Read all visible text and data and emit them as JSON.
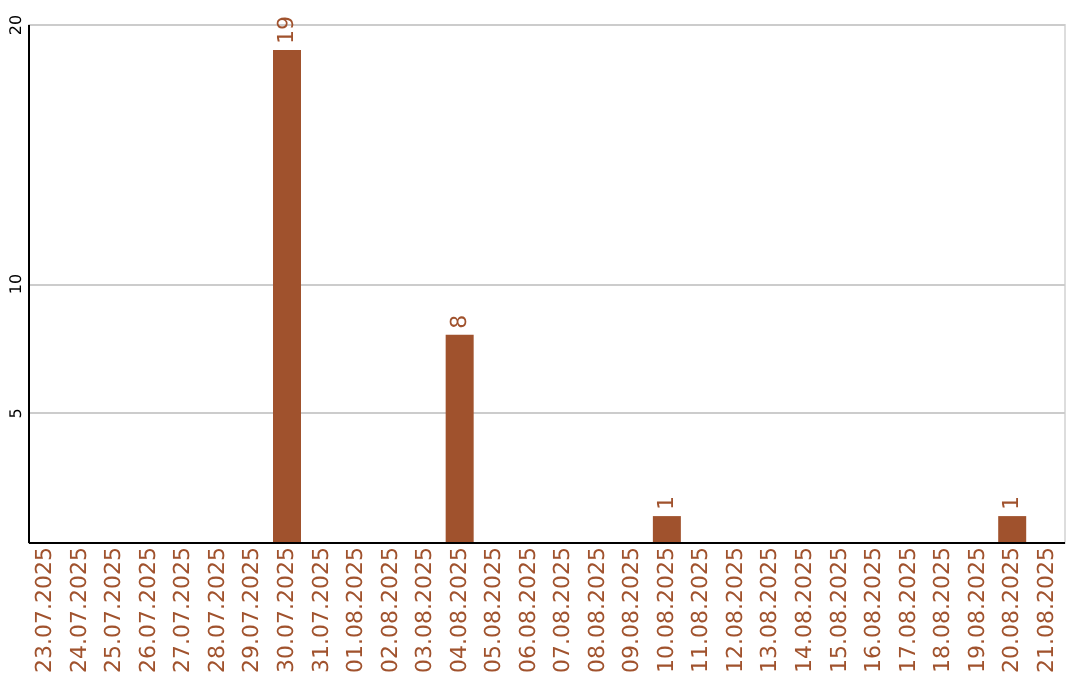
{
  "chart_data": {
    "type": "bar",
    "categories": [
      "23.07.2025",
      "24.07.2025",
      "25.07.2025",
      "26.07.2025",
      "27.07.2025",
      "28.07.2025",
      "29.07.2025",
      "30.07.2025",
      "31.07.2025",
      "01.08.2025",
      "02.08.2025",
      "03.08.2025",
      "04.08.2025",
      "05.08.2025",
      "06.08.2025",
      "07.08.2025",
      "08.08.2025",
      "09.08.2025",
      "10.08.2025",
      "11.08.2025",
      "12.08.2025",
      "13.08.2025",
      "14.08.2025",
      "15.08.2025",
      "16.08.2025",
      "17.08.2025",
      "18.08.2025",
      "19.08.2025",
      "20.08.2025",
      "21.08.2025"
    ],
    "values": [
      0,
      0,
      0,
      0,
      0,
      0,
      0,
      19,
      0,
      0,
      0,
      0,
      8,
      0,
      0,
      0,
      0,
      0,
      1,
      0,
      0,
      0,
      0,
      0,
      0,
      0,
      0,
      0,
      1,
      0
    ],
    "value_labels": [
      null,
      null,
      null,
      null,
      null,
      null,
      null,
      "19",
      null,
      null,
      null,
      null,
      "8",
      null,
      null,
      null,
      null,
      null,
      "1",
      null,
      null,
      null,
      null,
      null,
      null,
      null,
      null,
      null,
      "1",
      null
    ],
    "color": "#a0522d",
    "ylim": [
      0,
      20
    ],
    "yticks": [
      5,
      10,
      20
    ],
    "grid": "y"
  }
}
